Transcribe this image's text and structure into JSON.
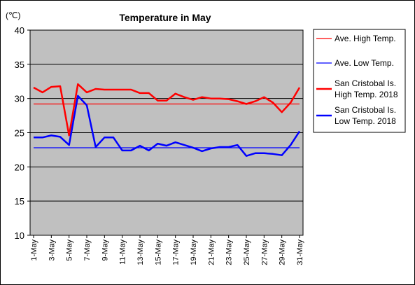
{
  "chart_data": {
    "type": "line",
    "title": "Temperature in May",
    "unit": "(℃)",
    "ylim": [
      10,
      40
    ],
    "yticks": [
      10,
      15,
      20,
      25,
      30,
      35,
      40
    ],
    "grid": true,
    "legend_position": "right",
    "x": [
      "1-May",
      "2-May",
      "3-May",
      "4-May",
      "5-May",
      "6-May",
      "7-May",
      "8-May",
      "9-May",
      "10-May",
      "11-May",
      "12-May",
      "13-May",
      "14-May",
      "15-May",
      "16-May",
      "17-May",
      "18-May",
      "19-May",
      "20-May",
      "21-May",
      "22-May",
      "23-May",
      "24-May",
      "25-May",
      "26-May",
      "27-May",
      "28-May",
      "29-May",
      "30-May",
      "31-May"
    ],
    "x_tick_labels": [
      "1-May",
      "3-May",
      "5-May",
      "7-May",
      "9-May",
      "11-May",
      "13-May",
      "15-May",
      "17-May",
      "19-May",
      "21-May",
      "23-May",
      "25-May",
      "27-May",
      "29-May",
      "31-May"
    ],
    "series": [
      {
        "name": "Ave. High Temp.",
        "color": "#ff0000",
        "style": "thin",
        "values": [
          29.2,
          29.2,
          29.2,
          29.2,
          29.2,
          29.2,
          29.2,
          29.2,
          29.2,
          29.2,
          29.2,
          29.2,
          29.2,
          29.2,
          29.2,
          29.2,
          29.2,
          29.2,
          29.2,
          29.2,
          29.2,
          29.2,
          29.2,
          29.2,
          29.2,
          29.2,
          29.2,
          29.2,
          29.2,
          29.2,
          29.2
        ]
      },
      {
        "name": "Ave. Low Temp.",
        "color": "#0000ff",
        "style": "thin",
        "values": [
          22.8,
          22.8,
          22.8,
          22.8,
          22.8,
          22.8,
          22.8,
          22.8,
          22.8,
          22.8,
          22.8,
          22.8,
          22.8,
          22.8,
          22.8,
          22.8,
          22.8,
          22.8,
          22.8,
          22.8,
          22.8,
          22.8,
          22.8,
          22.8,
          22.8,
          22.8,
          22.8,
          22.8,
          22.8,
          22.8,
          22.8
        ]
      },
      {
        "name": "San Cristobal Is.\nHigh Temp. 2018",
        "color": "#ff0000",
        "style": "thick",
        "values": [
          31.6,
          30.9,
          31.7,
          31.8,
          24.6,
          32.1,
          30.9,
          31.4,
          31.3,
          31.3,
          31.3,
          31.3,
          30.8,
          30.8,
          29.7,
          29.7,
          30.7,
          30.2,
          29.8,
          30.2,
          30.0,
          30.0,
          29.9,
          29.6,
          29.2,
          29.6,
          30.2,
          29.4,
          28.0,
          29.4,
          31.6
        ]
      },
      {
        "name": "San Cristobal Is.\nLow Temp. 2018",
        "color": "#0000ff",
        "style": "thick",
        "values": [
          24.3,
          24.3,
          24.6,
          24.4,
          23.2,
          30.4,
          29.0,
          22.9,
          24.3,
          24.3,
          22.4,
          22.4,
          23.1,
          22.4,
          23.4,
          23.1,
          23.6,
          23.2,
          22.8,
          22.3,
          22.7,
          22.9,
          22.9,
          23.2,
          21.6,
          22.0,
          22.0,
          21.9,
          21.7,
          23.2,
          25.2
        ]
      }
    ]
  }
}
